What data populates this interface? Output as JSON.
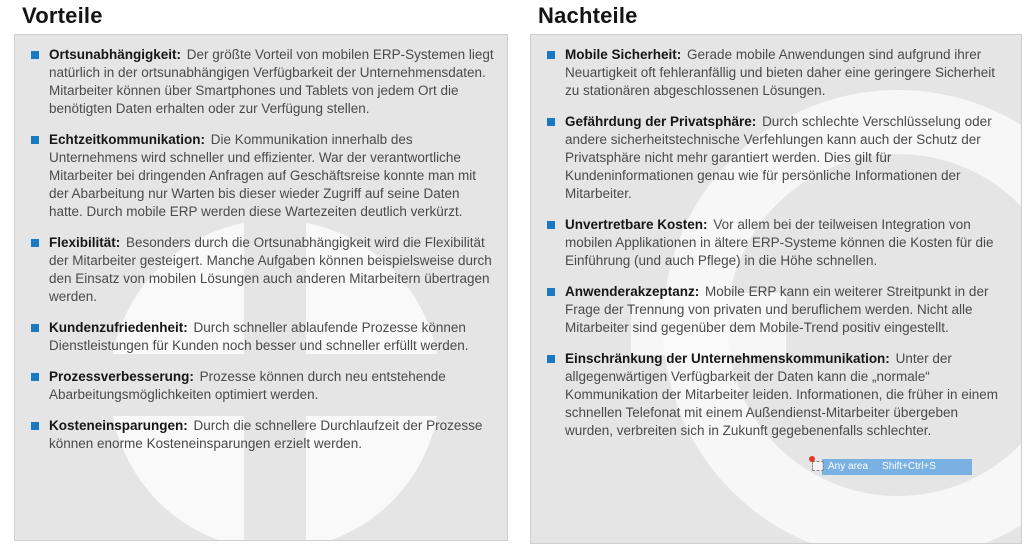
{
  "page": {
    "columns": [
      {
        "title": "Vorteile",
        "items": [
          {
            "term": "Ortsunabhängigkeit:",
            "text": "Der größte Vorteil von mobilen ERP-Systemen liegt natürlich in der ortsunabhängigen Verfügbarkeit der Unternehmensdaten. Mitarbeiter können über Smartphones und Tablets von jedem Ort die benötigten Daten erhalten oder zur Verfügung stellen."
          },
          {
            "term": "Echtzeitkommunikation:",
            "text": "Die Kommunikation innerhalb des Unternehmens wird schneller und effizienter. War der verantwortliche Mitarbeiter bei dringenden Anfragen auf Geschäftsreise konnte man mit der Abarbeitung nur Warten bis dieser wieder Zugriff auf seine Daten hatte. Durch mobile ERP werden diese Wartezeiten deutlich verkürzt."
          },
          {
            "term": "Flexibilität:",
            "text": "Besonders durch die Ortsunabhängigkeit wird die Flexibilität der Mitarbeiter gesteigert. Manche Aufgaben können beispielsweise durch den Einsatz von mobilen Lösungen auch anderen Mitarbeitern übertragen werden."
          },
          {
            "term": "Kundenzufriedenheit:",
            "text": "Durch schneller ablaufende Prozesse können Dienstleistungen für Kunden noch besser und schneller erfüllt werden."
          },
          {
            "term": "Prozessverbesserung:",
            "text": "Prozesse können durch neu entstehende Abarbeitungsmöglichkeiten optimiert werden."
          },
          {
            "term": "Kosteneinsparungen:",
            "text": "Durch die schnellere Durchlaufzeit der Prozesse können enorme Kosteneinsparungen erzielt werden."
          }
        ]
      },
      {
        "title": "Nachteile",
        "items": [
          {
            "term": "Mobile Sicherheit:",
            "text": "Gerade mobile Anwendungen sind aufgrund ihrer Neuartigkeit oft fehleranfällig und bieten daher eine geringere Sicherheit zu stationären abgeschlossenen Lösungen."
          },
          {
            "term": "Gefährdung der Privatsphäre:",
            "text": "Durch schlechte Verschlüsselung oder andere sicherheitstechnische Verfehlungen kann auch der Schutz der Privatsphäre nicht mehr garantiert werden. Dies gilt für Kundeninformationen genau wie für persönliche Informationen der Mitarbeiter."
          },
          {
            "term": "Unvertretbare Kosten:",
            "text": "Vor allem bei der teilweisen Integration von mobilen Applikationen in ältere ERP-Systeme können die Kosten für die Einführung (und auch Pflege) in die Höhe schnellen."
          },
          {
            "term": "Anwenderakzeptanz:",
            "text": "Mobile ERP kann ein weiterer Streitpunkt in der Frage der Trennung von privaten und beruflichem werden. Nicht alle Mitarbeiter sind gegenüber dem Mobile-Trend positiv eingestellt."
          },
          {
            "term": "Einschränkung der Unternehmenskommunikation:",
            "text": "Unter der allgegenwärtigen Verfügbarkeit der Daten kann die „normale“ Kommunikation der Mitarbeiter leiden. Informationen, die früher in einem schnellen Telefonat mit einem Außendienst-Mitarbeiter übergeben wurden, verbreiten sich in Zukunft gegebenenfalls schlechter."
          }
        ]
      }
    ]
  },
  "capture_overlay": {
    "label": "Any area",
    "shortcut": "Shift+Ctrl+S"
  },
  "colors": {
    "bullet": "#1b79c2",
    "panel_bg": "#e5e5e5",
    "panel_border": "#cfcfcf",
    "tooltip_bg": "#4d9de0",
    "heading_text": "#141414",
    "body_text": "#4a4a4a"
  }
}
